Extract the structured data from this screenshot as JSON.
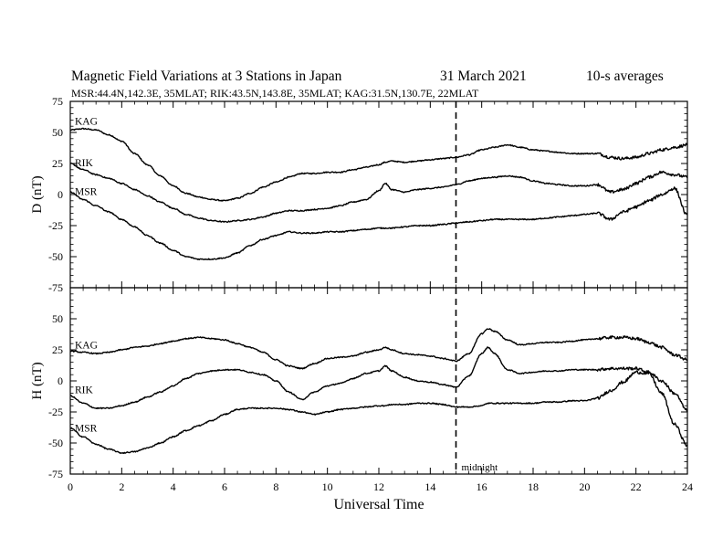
{
  "header": {
    "title": "Magnetic Field Variations at 3 Stations in Japan",
    "date": "31 March   2021",
    "averaging": "10-s averages",
    "stations_line": "MSR:44.4N,142.3E, 35MLAT;  RIK:43.5N,143.8E, 35MLAT;  KAG:31.5N,130.7E, 22MLAT"
  },
  "chart_data": [
    {
      "type": "line",
      "ylabel": "D (nT)",
      "xlabel": "",
      "xlim": [
        0,
        24
      ],
      "ylim": [
        -75,
        75
      ],
      "yticks": [
        -75,
        -50,
        -25,
        0,
        25,
        50,
        75
      ],
      "ytick_labels": [
        "-75",
        "-50",
        "-25",
        "0",
        "25",
        "50",
        "75"
      ],
      "x": [
        0,
        0.5,
        1,
        1.5,
        2,
        2.5,
        3,
        3.5,
        4,
        4.5,
        5,
        5.5,
        6,
        6.5,
        7,
        7.5,
        8,
        8.5,
        9,
        9.5,
        10,
        10.5,
        11,
        11.5,
        12,
        12.25,
        12.5,
        13,
        13.5,
        14,
        14.5,
        15,
        15.5,
        16,
        16.5,
        17,
        17.5,
        18,
        18.5,
        19,
        19.5,
        20,
        20.5,
        21,
        21.5,
        22,
        22.5,
        23,
        23.5,
        24
      ],
      "series": [
        {
          "name": "KAG",
          "values": [
            52,
            53,
            52,
            48,
            43,
            33,
            24,
            15,
            7,
            1,
            -2,
            -4,
            -5,
            -3,
            1,
            6,
            10,
            14,
            17,
            17,
            18,
            18,
            20,
            22,
            24,
            26,
            27,
            26,
            27,
            28,
            29,
            30,
            32,
            36,
            38,
            40,
            38,
            36,
            35,
            34,
            33,
            33,
            33,
            30,
            29,
            30,
            33,
            36,
            38,
            40
          ]
        },
        {
          "name": "RIK",
          "values": [
            25,
            20,
            16,
            13,
            9,
            4,
            -1,
            -6,
            -11,
            -16,
            -19,
            -21,
            -22,
            -21,
            -20,
            -18,
            -15,
            -13,
            -13,
            -12,
            -11,
            -9,
            -6,
            -4,
            3,
            9,
            4,
            2,
            4,
            5,
            6,
            8,
            11,
            13,
            14,
            15,
            14,
            11,
            9,
            8,
            7,
            7,
            8,
            2,
            4,
            9,
            14,
            18,
            16,
            14
          ]
        },
        {
          "name": "MSR",
          "values": [
            2,
            -4,
            -9,
            -14,
            -20,
            -26,
            -33,
            -39,
            -45,
            -50,
            -52,
            -52,
            -51,
            -47,
            -41,
            -36,
            -33,
            -30,
            -31,
            -31,
            -30,
            -30,
            -29,
            -28,
            -27,
            -27,
            -27,
            -26,
            -25,
            -25,
            -24,
            -23,
            -22,
            -21,
            -20,
            -20,
            -20,
            -20,
            -19,
            -18,
            -17,
            -16,
            -15,
            -20,
            -14,
            -10,
            -5,
            0,
            5,
            -17
          ]
        }
      ]
    },
    {
      "type": "line",
      "ylabel": "H (nT)",
      "xlabel": "Universal Time",
      "xlim": [
        0,
        24
      ],
      "ylim": [
        -75,
        75
      ],
      "xticks": [
        0,
        2,
        4,
        6,
        8,
        10,
        12,
        14,
        16,
        18,
        20,
        22,
        24
      ],
      "xtick_labels": [
        "0",
        "2",
        "4",
        "6",
        "8",
        "10",
        "12",
        "14",
        "16",
        "18",
        "20",
        "22",
        "24"
      ],
      "yticks": [
        -75,
        -50,
        -25,
        0,
        25,
        50
      ],
      "ytick_labels": [
        "-75",
        "-50",
        "-25",
        "0",
        "25",
        "50"
      ],
      "x": [
        0,
        0.5,
        1,
        1.5,
        2,
        2.5,
        3,
        3.5,
        4,
        4.5,
        5,
        5.5,
        6,
        6.5,
        7,
        7.5,
        8,
        8.5,
        9,
        9.5,
        10,
        10.5,
        11,
        11.5,
        12,
        12.25,
        12.5,
        13,
        13.5,
        14,
        14.5,
        15,
        15.5,
        16,
        16.25,
        16.5,
        17,
        17.5,
        18,
        18.5,
        19,
        19.5,
        20,
        20.5,
        21,
        21.5,
        22,
        22.5,
        23,
        23.5,
        24
      ],
      "series": [
        {
          "name": "KAG",
          "values": [
            24,
            23,
            22,
            23,
            25,
            27,
            28,
            30,
            32,
            34,
            35,
            34,
            33,
            30,
            27,
            23,
            17,
            12,
            10,
            14,
            18,
            19,
            20,
            23,
            25,
            27,
            25,
            22,
            21,
            20,
            18,
            16,
            22,
            38,
            42,
            40,
            33,
            29,
            30,
            31,
            31,
            32,
            33,
            34,
            35,
            35,
            34,
            31,
            27,
            21,
            17
          ]
        },
        {
          "name": "RIK",
          "values": [
            -12,
            -18,
            -22,
            -22,
            -20,
            -17,
            -13,
            -9,
            -4,
            2,
            6,
            8,
            9,
            9,
            7,
            5,
            0,
            -9,
            -15,
            -9,
            -4,
            -2,
            2,
            6,
            8,
            12,
            8,
            3,
            0,
            -1,
            -3,
            -5,
            4,
            22,
            27,
            22,
            9,
            6,
            7,
            8,
            8,
            9,
            9,
            9,
            10,
            10,
            10,
            7,
            0,
            -10,
            -24
          ]
        },
        {
          "name": "MSR",
          "values": [
            -38,
            -45,
            -51,
            -55,
            -58,
            -57,
            -54,
            -50,
            -45,
            -40,
            -36,
            -32,
            -27,
            -23,
            -22,
            -22,
            -22,
            -23,
            -25,
            -27,
            -25,
            -23,
            -22,
            -21,
            -20,
            -20,
            -19,
            -19,
            -18,
            -18,
            -19,
            -21,
            -21,
            -20,
            -18,
            -18,
            -18,
            -18,
            -18,
            -17,
            -17,
            -16,
            -16,
            -14,
            -8,
            -1,
            7,
            6,
            -10,
            -35,
            -52
          ]
        }
      ]
    }
  ],
  "annotations": {
    "midnight_label": "midnight",
    "midnight_ut": 15
  }
}
